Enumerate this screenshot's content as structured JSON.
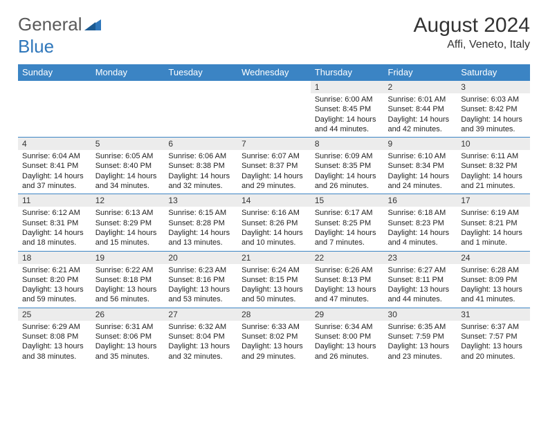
{
  "logo": {
    "text1": "General",
    "text2": "Blue"
  },
  "title": "August 2024",
  "location": "Affi, Veneto, Italy",
  "colors": {
    "header_bg": "#3b84c4",
    "header_text": "#ffffff",
    "daynum_bg": "#ececec",
    "border": "#3b84c4",
    "logo_gray": "#5a5a5a",
    "logo_blue": "#2f77bb"
  },
  "weekdays": [
    "Sunday",
    "Monday",
    "Tuesday",
    "Wednesday",
    "Thursday",
    "Friday",
    "Saturday"
  ],
  "weeks": [
    [
      null,
      null,
      null,
      null,
      {
        "n": "1",
        "sr": "Sunrise: 6:00 AM",
        "ss": "Sunset: 8:45 PM",
        "dl": "Daylight: 14 hours and 44 minutes."
      },
      {
        "n": "2",
        "sr": "Sunrise: 6:01 AM",
        "ss": "Sunset: 8:44 PM",
        "dl": "Daylight: 14 hours and 42 minutes."
      },
      {
        "n": "3",
        "sr": "Sunrise: 6:03 AM",
        "ss": "Sunset: 8:42 PM",
        "dl": "Daylight: 14 hours and 39 minutes."
      }
    ],
    [
      {
        "n": "4",
        "sr": "Sunrise: 6:04 AM",
        "ss": "Sunset: 8:41 PM",
        "dl": "Daylight: 14 hours and 37 minutes."
      },
      {
        "n": "5",
        "sr": "Sunrise: 6:05 AM",
        "ss": "Sunset: 8:40 PM",
        "dl": "Daylight: 14 hours and 34 minutes."
      },
      {
        "n": "6",
        "sr": "Sunrise: 6:06 AM",
        "ss": "Sunset: 8:38 PM",
        "dl": "Daylight: 14 hours and 32 minutes."
      },
      {
        "n": "7",
        "sr": "Sunrise: 6:07 AM",
        "ss": "Sunset: 8:37 PM",
        "dl": "Daylight: 14 hours and 29 minutes."
      },
      {
        "n": "8",
        "sr": "Sunrise: 6:09 AM",
        "ss": "Sunset: 8:35 PM",
        "dl": "Daylight: 14 hours and 26 minutes."
      },
      {
        "n": "9",
        "sr": "Sunrise: 6:10 AM",
        "ss": "Sunset: 8:34 PM",
        "dl": "Daylight: 14 hours and 24 minutes."
      },
      {
        "n": "10",
        "sr": "Sunrise: 6:11 AM",
        "ss": "Sunset: 8:32 PM",
        "dl": "Daylight: 14 hours and 21 minutes."
      }
    ],
    [
      {
        "n": "11",
        "sr": "Sunrise: 6:12 AM",
        "ss": "Sunset: 8:31 PM",
        "dl": "Daylight: 14 hours and 18 minutes."
      },
      {
        "n": "12",
        "sr": "Sunrise: 6:13 AM",
        "ss": "Sunset: 8:29 PM",
        "dl": "Daylight: 14 hours and 15 minutes."
      },
      {
        "n": "13",
        "sr": "Sunrise: 6:15 AM",
        "ss": "Sunset: 8:28 PM",
        "dl": "Daylight: 14 hours and 13 minutes."
      },
      {
        "n": "14",
        "sr": "Sunrise: 6:16 AM",
        "ss": "Sunset: 8:26 PM",
        "dl": "Daylight: 14 hours and 10 minutes."
      },
      {
        "n": "15",
        "sr": "Sunrise: 6:17 AM",
        "ss": "Sunset: 8:25 PM",
        "dl": "Daylight: 14 hours and 7 minutes."
      },
      {
        "n": "16",
        "sr": "Sunrise: 6:18 AM",
        "ss": "Sunset: 8:23 PM",
        "dl": "Daylight: 14 hours and 4 minutes."
      },
      {
        "n": "17",
        "sr": "Sunrise: 6:19 AM",
        "ss": "Sunset: 8:21 PM",
        "dl": "Daylight: 14 hours and 1 minute."
      }
    ],
    [
      {
        "n": "18",
        "sr": "Sunrise: 6:21 AM",
        "ss": "Sunset: 8:20 PM",
        "dl": "Daylight: 13 hours and 59 minutes."
      },
      {
        "n": "19",
        "sr": "Sunrise: 6:22 AM",
        "ss": "Sunset: 8:18 PM",
        "dl": "Daylight: 13 hours and 56 minutes."
      },
      {
        "n": "20",
        "sr": "Sunrise: 6:23 AM",
        "ss": "Sunset: 8:16 PM",
        "dl": "Daylight: 13 hours and 53 minutes."
      },
      {
        "n": "21",
        "sr": "Sunrise: 6:24 AM",
        "ss": "Sunset: 8:15 PM",
        "dl": "Daylight: 13 hours and 50 minutes."
      },
      {
        "n": "22",
        "sr": "Sunrise: 6:26 AM",
        "ss": "Sunset: 8:13 PM",
        "dl": "Daylight: 13 hours and 47 minutes."
      },
      {
        "n": "23",
        "sr": "Sunrise: 6:27 AM",
        "ss": "Sunset: 8:11 PM",
        "dl": "Daylight: 13 hours and 44 minutes."
      },
      {
        "n": "24",
        "sr": "Sunrise: 6:28 AM",
        "ss": "Sunset: 8:09 PM",
        "dl": "Daylight: 13 hours and 41 minutes."
      }
    ],
    [
      {
        "n": "25",
        "sr": "Sunrise: 6:29 AM",
        "ss": "Sunset: 8:08 PM",
        "dl": "Daylight: 13 hours and 38 minutes."
      },
      {
        "n": "26",
        "sr": "Sunrise: 6:31 AM",
        "ss": "Sunset: 8:06 PM",
        "dl": "Daylight: 13 hours and 35 minutes."
      },
      {
        "n": "27",
        "sr": "Sunrise: 6:32 AM",
        "ss": "Sunset: 8:04 PM",
        "dl": "Daylight: 13 hours and 32 minutes."
      },
      {
        "n": "28",
        "sr": "Sunrise: 6:33 AM",
        "ss": "Sunset: 8:02 PM",
        "dl": "Daylight: 13 hours and 29 minutes."
      },
      {
        "n": "29",
        "sr": "Sunrise: 6:34 AM",
        "ss": "Sunset: 8:00 PM",
        "dl": "Daylight: 13 hours and 26 minutes."
      },
      {
        "n": "30",
        "sr": "Sunrise: 6:35 AM",
        "ss": "Sunset: 7:59 PM",
        "dl": "Daylight: 13 hours and 23 minutes."
      },
      {
        "n": "31",
        "sr": "Sunrise: 6:37 AM",
        "ss": "Sunset: 7:57 PM",
        "dl": "Daylight: 13 hours and 20 minutes."
      }
    ]
  ]
}
